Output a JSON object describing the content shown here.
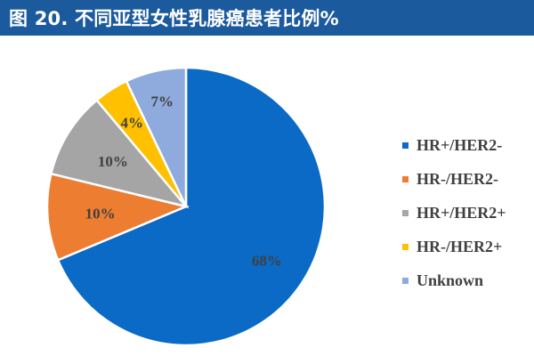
{
  "title": "图 20. 不同亚型女性乳腺癌患者比例%",
  "chart_data": {
    "type": "pie",
    "title": "图 20. 不同亚型女性乳腺癌患者比例%",
    "legend_position": "right",
    "slices": [
      {
        "name": "HR+/HER2-",
        "value": 68,
        "label": "68%",
        "color": "#0a6ac6"
      },
      {
        "name": "HR-/HER2-",
        "value": 10,
        "label": "10%",
        "color": "#ed7d31"
      },
      {
        "name": "HR+/HER2+",
        "value": 10,
        "label": "10%",
        "color": "#a5a5a5"
      },
      {
        "name": "HR-/HER2+",
        "value": 4,
        "label": "4%",
        "color": "#ffc000"
      },
      {
        "name": "Unknown",
        "value": 7,
        "label": "7%",
        "color": "#8faadc"
      }
    ]
  }
}
